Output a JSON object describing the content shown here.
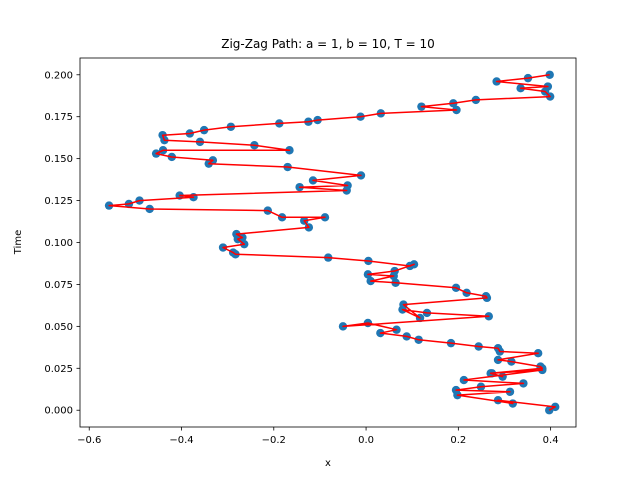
{
  "chart_data": {
    "type": "scatter",
    "title": "Zig-Zag Path: a = 1, b = 10, T = 10",
    "xlabel": "x",
    "ylabel": "Time",
    "xlim": [
      -0.62,
      0.455
    ],
    "ylim": [
      -0.01,
      0.21
    ],
    "x_ticks": [
      -0.6,
      -0.4,
      -0.2,
      0.0,
      0.2,
      0.4
    ],
    "x_tick_labels": [
      "−0.6",
      "−0.4",
      "−0.2",
      "0.0",
      "0.2",
      "0.4"
    ],
    "y_ticks": [
      0.0,
      0.025,
      0.05,
      0.075,
      0.1,
      0.125,
      0.15,
      0.175,
      0.2
    ],
    "y_tick_labels": [
      "0.000",
      "0.025",
      "0.050",
      "0.075",
      "0.100",
      "0.125",
      "0.150",
      "0.175",
      "0.200"
    ],
    "grid": false,
    "legend": null,
    "colors": {
      "points": "#1f77b4",
      "line": "#ff0000",
      "axes": "#000000"
    },
    "series": [
      {
        "style": "points+line",
        "x": [
          0.397,
          0.41,
          0.286,
          0.318,
          0.198,
          0.312,
          0.195,
          0.249,
          0.341,
          0.212,
          0.382,
          0.273,
          0.296,
          0.27,
          0.382,
          0.378,
          0.315,
          0.286,
          0.373,
          0.29,
          0.286,
          0.244,
          0.184,
          0.114,
          0.088,
          0.031,
          0.066,
          0.004,
          -0.05,
          0.266,
          0.132,
          0.079,
          0.117,
          0.081,
          0.262,
          0.26,
          0.218,
          0.195,
          0.064,
          0.01,
          0.06,
          0.004,
          0.062,
          0.104,
          0.095,
          0.005,
          -0.082,
          -0.283,
          -0.288,
          -0.31,
          -0.264,
          -0.278,
          -0.268,
          -0.281,
          -0.124,
          -0.134,
          -0.089,
          -0.182,
          -0.213,
          -0.469,
          -0.557,
          -0.514,
          -0.491,
          -0.374,
          -0.404,
          -0.042,
          -0.144,
          -0.04,
          -0.115,
          -0.011,
          -0.17,
          -0.341,
          -0.332,
          -0.421,
          -0.455,
          -0.44,
          -0.166,
          -0.242,
          -0.36,
          -0.437,
          -0.441,
          -0.382,
          -0.351,
          -0.293,
          -0.188,
          -0.125,
          -0.105,
          -0.012,
          0.032,
          0.196,
          0.12,
          0.189,
          0.238,
          0.399,
          0.388,
          0.335,
          0.394,
          0.283,
          0.351,
          0.398
        ],
        "y": [
          0.0,
          0.002,
          0.006,
          0.004,
          0.009,
          0.011,
          0.012,
          0.014,
          0.016,
          0.018,
          0.024,
          0.022,
          0.02,
          0.022,
          0.025,
          0.026,
          0.029,
          0.03,
          0.034,
          0.035,
          0.037,
          0.038,
          0.04,
          0.042,
          0.044,
          0.046,
          0.048,
          0.052,
          0.05,
          0.056,
          0.058,
          0.06,
          0.055,
          0.063,
          0.067,
          0.068,
          0.07,
          0.073,
          0.076,
          0.077,
          0.08,
          0.081,
          0.083,
          0.087,
          0.086,
          0.089,
          0.091,
          0.093,
          0.094,
          0.097,
          0.099,
          0.102,
          0.103,
          0.105,
          0.109,
          0.113,
          0.115,
          0.115,
          0.119,
          0.12,
          0.122,
          0.123,
          0.125,
          0.127,
          0.128,
          0.131,
          0.133,
          0.134,
          0.137,
          0.14,
          0.145,
          0.147,
          0.149,
          0.151,
          0.153,
          0.155,
          0.155,
          0.158,
          0.16,
          0.161,
          0.164,
          0.165,
          0.167,
          0.169,
          0.171,
          0.172,
          0.173,
          0.175,
          0.177,
          0.179,
          0.181,
          0.183,
          0.185,
          0.187,
          0.19,
          0.192,
          0.193,
          0.196,
          0.198,
          0.2
        ]
      }
    ]
  }
}
